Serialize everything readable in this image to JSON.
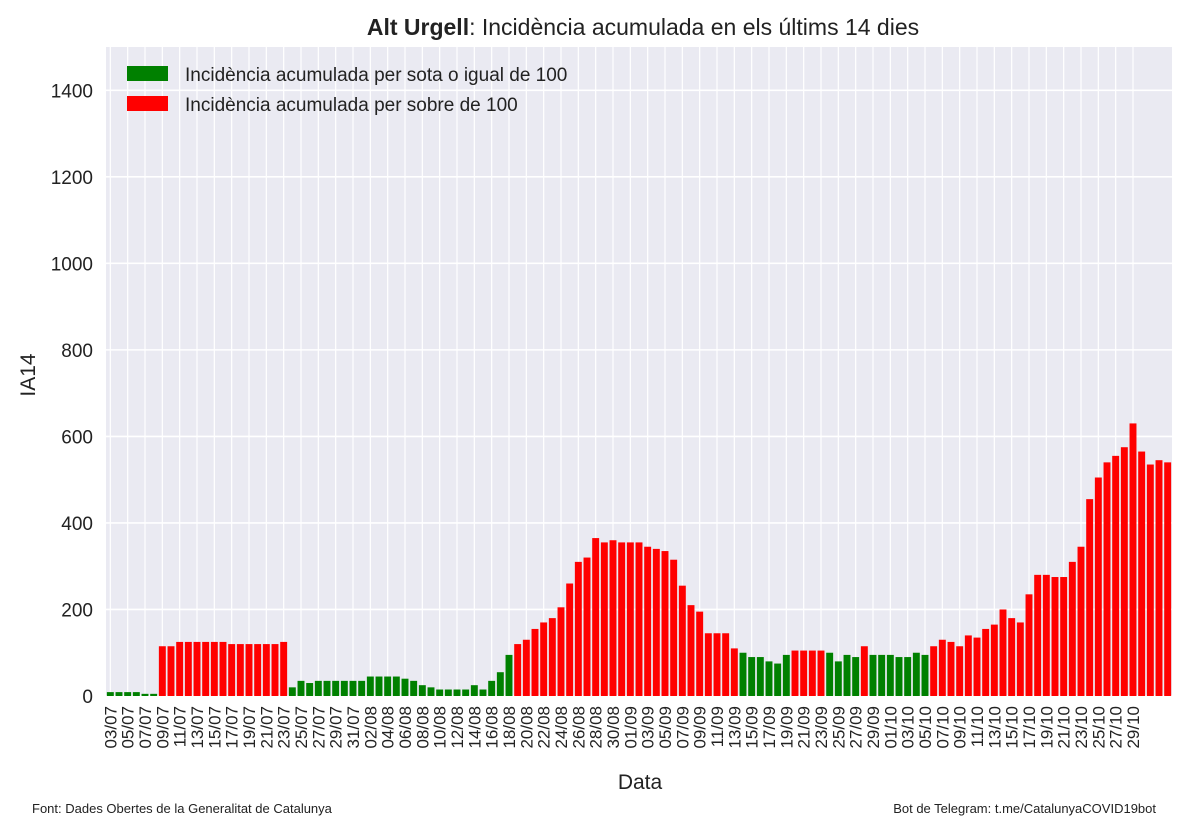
{
  "title": {
    "bold": "Alt Urgell",
    "rest": ": Incidència acumulada en els últims 14 dies"
  },
  "footer": {
    "source": "Font: Dades Obertes de la Generalitat de Catalunya",
    "bot": "Bot de Telegram: t.me/CatalunyaCOVID19bot"
  },
  "colors": {
    "low": "#008000",
    "high": "#ff0000",
    "plot_bg": "#eaeaf2",
    "grid": "#ffffff"
  },
  "chart_data": {
    "type": "bar",
    "xlabel": "Data",
    "ylabel": "IA14",
    "ylim": [
      0,
      1500
    ],
    "yticks": [
      0,
      200,
      400,
      600,
      800,
      1000,
      1200,
      1400
    ],
    "threshold": 100,
    "grid": true,
    "legend_position": "top-left",
    "series": [
      {
        "name": "Incidència acumulada per sota o igual de 100",
        "color": "#008000"
      },
      {
        "name": "Incidència acumulada per sobre de 100",
        "color": "#ff0000"
      }
    ],
    "xtick_labels": [
      "03/07",
      "05/07",
      "07/07",
      "09/07",
      "11/07",
      "13/07",
      "15/07",
      "17/07",
      "19/07",
      "21/07",
      "23/07",
      "25/07",
      "27/07",
      "29/07",
      "31/07",
      "02/08",
      "04/08",
      "06/08",
      "08/08",
      "10/08",
      "12/08",
      "14/08",
      "16/08",
      "18/08",
      "20/08",
      "22/08",
      "24/08",
      "26/08",
      "28/08",
      "30/08",
      "01/09",
      "03/09",
      "05/09",
      "07/09",
      "09/09",
      "11/09",
      "13/09",
      "15/09",
      "17/09",
      "19/09",
      "21/09",
      "23/09",
      "25/09",
      "27/09",
      "29/09",
      "01/10",
      "03/10",
      "05/10",
      "07/10",
      "09/10",
      "11/10",
      "13/10",
      "15/10",
      "17/10",
      "19/10",
      "21/10",
      "23/10",
      "25/10",
      "27/10",
      "29/10"
    ],
    "values": [
      9,
      9,
      9,
      9,
      5,
      5,
      115,
      115,
      125,
      125,
      125,
      125,
      125,
      125,
      120,
      120,
      120,
      120,
      120,
      120,
      125,
      20,
      35,
      30,
      35,
      35,
      35,
      35,
      35,
      35,
      45,
      45,
      45,
      45,
      40,
      35,
      25,
      20,
      15,
      15,
      15,
      15,
      25,
      15,
      35,
      55,
      95,
      120,
      130,
      155,
      170,
      180,
      205,
      260,
      310,
      320,
      365,
      355,
      360,
      355,
      355,
      355,
      345,
      340,
      335,
      315,
      255,
      210,
      195,
      145,
      145,
      145,
      110,
      100,
      90,
      90,
      80,
      75,
      95,
      105,
      105,
      105,
      105,
      100,
      80,
      95,
      90,
      115,
      95,
      95,
      95,
      90,
      90,
      100,
      95,
      115,
      130,
      125,
      115,
      140,
      135,
      155,
      165,
      200,
      180,
      170,
      235,
      280,
      280,
      275,
      275,
      310,
      345,
      455,
      505,
      540,
      555,
      575,
      630,
      565,
      535,
      545,
      540
    ]
  }
}
